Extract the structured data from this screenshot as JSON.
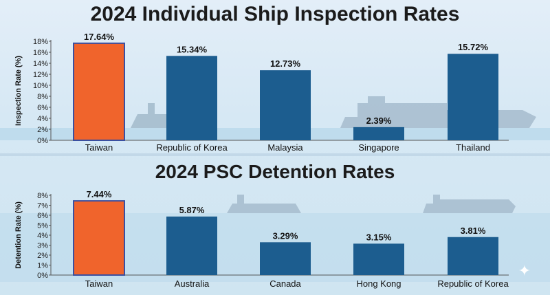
{
  "colors": {
    "highlight": "#f0642c",
    "highlight_border": "#3a4fa0",
    "bar": "#1c5d8f",
    "sea": "#bfdced",
    "ship": "#8fa9bd"
  },
  "chart_data": [
    {
      "type": "bar",
      "title": "2024 Individual Ship Inspection Rates",
      "ylabel": "Inspection Rate (%)",
      "xlabel": "",
      "categories": [
        "Taiwan",
        "Republic of Korea",
        "Malaysia",
        "Singapore",
        "Thailand"
      ],
      "values": [
        17.64,
        15.34,
        12.73,
        2.39,
        15.72
      ],
      "value_labels": [
        "17.64%",
        "15.34%",
        "12.73%",
        "2.39%",
        "15.72%"
      ],
      "ylim": [
        0,
        18
      ],
      "yticks": [
        0,
        2,
        4,
        6,
        8,
        10,
        12,
        14,
        16,
        18
      ],
      "ytick_labels": [
        "0%",
        "2%",
        "4%",
        "6%",
        "8%",
        "10%",
        "12%",
        "14%",
        "16%",
        "18%"
      ],
      "highlight_index": 0,
      "grid": false,
      "legend": "none"
    },
    {
      "type": "bar",
      "title": "2024 PSC Detention Rates",
      "ylabel": "Detention Rate (%)",
      "xlabel": "",
      "categories": [
        "Taiwan",
        "Australia",
        "Canada",
        "Hong Kong",
        "Republic of Korea"
      ],
      "values": [
        7.44,
        5.87,
        3.29,
        3.15,
        3.81
      ],
      "value_labels": [
        "7.44%",
        "5.87%",
        "3.29%",
        "3.15%",
        "3.81%"
      ],
      "ylim": [
        0,
        8
      ],
      "yticks": [
        0,
        1,
        2,
        3,
        4,
        5,
        6,
        7,
        8
      ],
      "ytick_labels": [
        "0%",
        "1%",
        "2%",
        "3%",
        "4%",
        "5%",
        "6%",
        "7%",
        "8%"
      ],
      "highlight_index": 0,
      "grid": false,
      "legend": "none"
    }
  ]
}
